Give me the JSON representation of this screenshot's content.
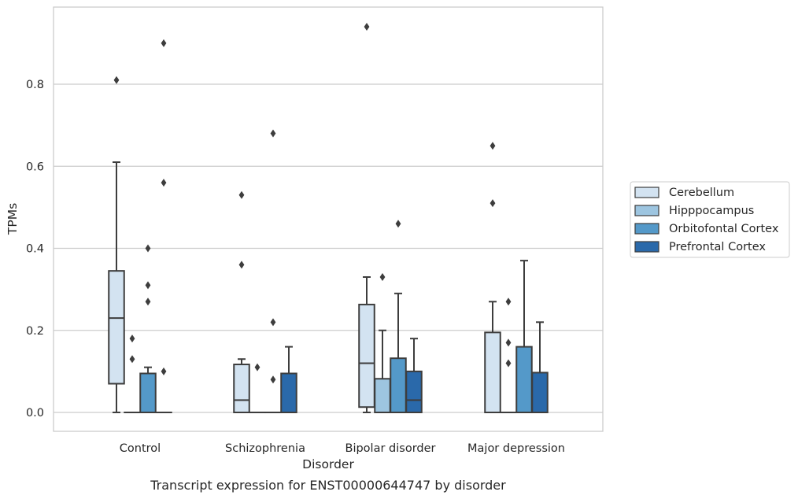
{
  "chart_data": {
    "type": "box",
    "xlabel": "Disorder",
    "ylabel": "TPMs",
    "caption": "Transcript expression for ENST00000644747 by disorder",
    "categories": [
      "Control",
      "Schizophrenia",
      "Bipolar disorder",
      "Major depression"
    ],
    "yticks": [
      "0.0",
      "0.2",
      "0.4",
      "0.6",
      "0.8"
    ],
    "ylim": [
      -0.045,
      0.99
    ],
    "grid": "horizontal",
    "legend_placement": "right",
    "colors": {
      "Cerebellum": "#d3e3f1",
      "Hipppocampus": "#9dc5e0",
      "Orbitofontal Cortex": "#5499c9",
      "Prefrontal Cortex": "#2a69aa"
    },
    "series": [
      {
        "name": "Cerebellum",
        "boxes": [
          {
            "q1": 0.07,
            "median": 0.23,
            "q3": 0.345,
            "whislo": 0.0,
            "whishi": 0.61,
            "fliers": [
              0.81
            ]
          },
          {
            "q1": 0.0,
            "median": 0.03,
            "q3": 0.117,
            "whislo": 0.0,
            "whishi": 0.13,
            "fliers": [
              0.53,
              0.36
            ]
          },
          {
            "q1": 0.013,
            "median": 0.12,
            "q3": 0.263,
            "whislo": 0.0,
            "whishi": 0.33,
            "fliers": [
              0.94
            ]
          },
          {
            "q1": 0.0,
            "median": 0.0,
            "q3": 0.195,
            "whislo": 0.0,
            "whishi": 0.27,
            "fliers": [
              0.65,
              0.51
            ]
          }
        ]
      },
      {
        "name": "Hipppocampus",
        "boxes": [
          {
            "q1": 0.0,
            "median": 0.0,
            "q3": 0.0,
            "whislo": 0.0,
            "whishi": 0.0,
            "fliers": [
              0.18,
              0.13
            ]
          },
          {
            "q1": 0.0,
            "median": 0.0,
            "q3": 0.0,
            "whislo": 0.0,
            "whishi": 0.0,
            "fliers": [
              0.11
            ]
          },
          {
            "q1": 0.0,
            "median": 0.0,
            "q3": 0.082,
            "whislo": 0.0,
            "whishi": 0.2,
            "fliers": [
              0.33
            ]
          },
          {
            "q1": 0.0,
            "median": 0.0,
            "q3": 0.0,
            "whislo": 0.0,
            "whishi": 0.0,
            "fliers": [
              0.27,
              0.17,
              0.12
            ]
          }
        ]
      },
      {
        "name": "Orbitofontal Cortex",
        "boxes": [
          {
            "q1": 0.0,
            "median": 0.0,
            "q3": 0.095,
            "whislo": 0.0,
            "whishi": 0.11,
            "fliers": [
              0.4,
              0.31,
              0.27
            ]
          },
          {
            "q1": 0.0,
            "median": 0.0,
            "q3": 0.0,
            "whislo": 0.0,
            "whishi": 0.0,
            "fliers": [
              0.68,
              0.22,
              0.08
            ]
          },
          {
            "q1": 0.0,
            "median": 0.0,
            "q3": 0.132,
            "whislo": 0.0,
            "whishi": 0.29,
            "fliers": [
              0.46
            ]
          },
          {
            "q1": 0.0,
            "median": 0.0,
            "q3": 0.16,
            "whislo": 0.0,
            "whishi": 0.37,
            "fliers": []
          }
        ]
      },
      {
        "name": "Prefrontal Cortex",
        "boxes": [
          {
            "q1": 0.0,
            "median": 0.0,
            "q3": 0.0,
            "whislo": 0.0,
            "whishi": 0.0,
            "fliers": [
              0.9,
              0.56,
              0.1
            ]
          },
          {
            "q1": 0.0,
            "median": 0.0,
            "q3": 0.095,
            "whislo": 0.0,
            "whishi": 0.16,
            "fliers": []
          },
          {
            "q1": 0.0,
            "median": 0.03,
            "q3": 0.1,
            "whislo": 0.0,
            "whishi": 0.18,
            "fliers": []
          },
          {
            "q1": 0.0,
            "median": 0.0,
            "q3": 0.097,
            "whislo": 0.0,
            "whishi": 0.22,
            "fliers": []
          }
        ]
      }
    ]
  }
}
